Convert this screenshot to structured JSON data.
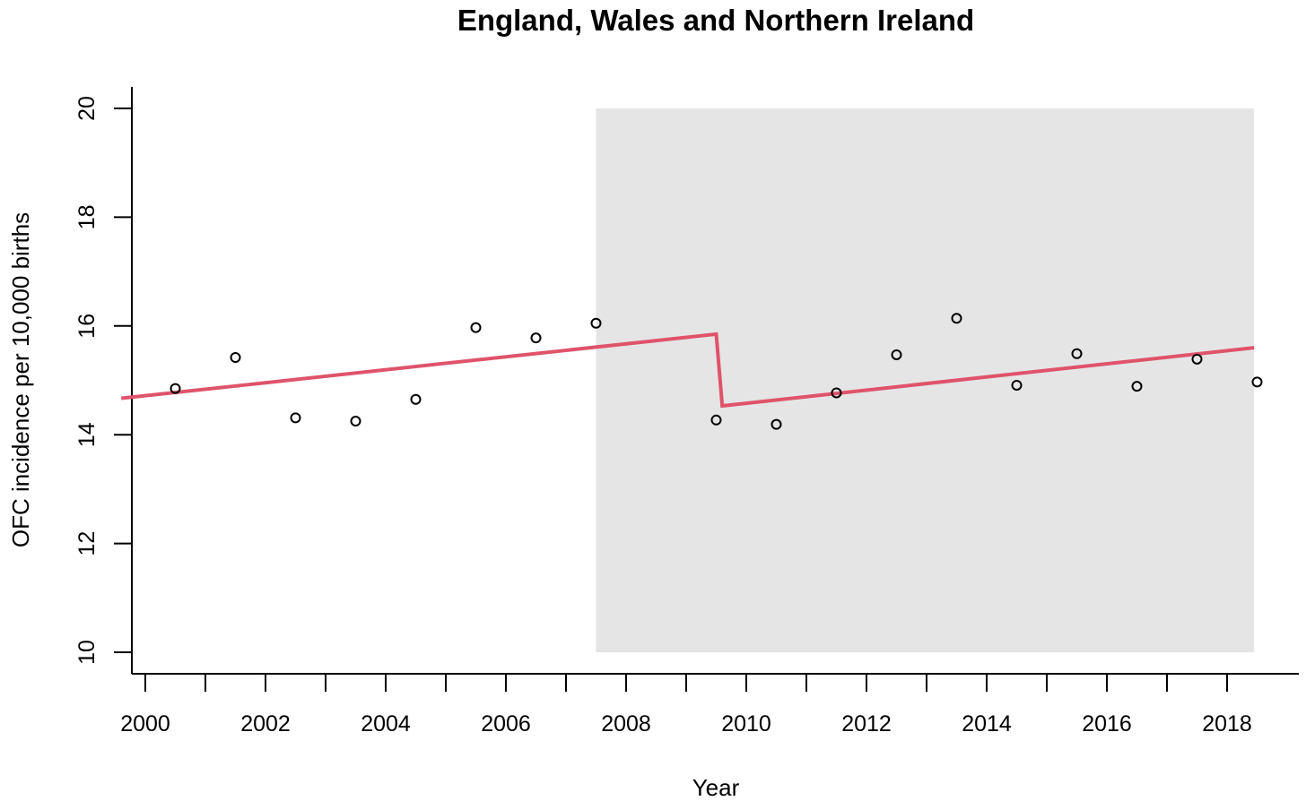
{
  "chart_data": {
    "type": "scatter",
    "title": "England, Wales and Northern Ireland",
    "xlabel": "Year",
    "ylabel": "OFC incidence per 10,000 births",
    "xlim": [
      1999.6,
      2018.8
    ],
    "ylim": [
      10,
      20
    ],
    "x_ticks": [
      2000,
      2001,
      2002,
      2003,
      2004,
      2005,
      2006,
      2007,
      2008,
      2009,
      2010,
      2011,
      2012,
      2013,
      2014,
      2015,
      2016,
      2017,
      2018
    ],
    "x_tick_labels": [
      "2000",
      "",
      "2002",
      "",
      "2004",
      "",
      "2006",
      "",
      "2008",
      "",
      "2010",
      "",
      "2012",
      "",
      "2014",
      "",
      "2016",
      "",
      "2018"
    ],
    "y_ticks": [
      10,
      12,
      14,
      16,
      18,
      20
    ],
    "y_tick_labels": [
      "10",
      "12",
      "14",
      "16",
      "18",
      "20"
    ],
    "grid": false,
    "shaded_region": {
      "x": [
        2007.5,
        2018.45
      ],
      "y": [
        10,
        20
      ],
      "color": "#e5e5e5"
    },
    "points": {
      "color": "#000000",
      "x": [
        2000.5,
        2001.5,
        2002.5,
        2003.5,
        2004.5,
        2005.5,
        2006.5,
        2007.5,
        2009.5,
        2010.5,
        2011.5,
        2012.5,
        2013.5,
        2014.5,
        2015.5,
        2016.5,
        2017.5,
        2018.5
      ],
      "y": [
        14.85,
        15.42,
        14.31,
        14.25,
        14.65,
        15.97,
        15.78,
        16.05,
        14.27,
        14.19,
        14.77,
        15.47,
        16.14,
        14.91,
        15.49,
        14.89,
        15.39,
        14.97
      ]
    },
    "fit_line": {
      "color": "#df536b",
      "segments": [
        {
          "x": [
            1999.6,
            2009.5
          ],
          "y": [
            14.67,
            15.85
          ]
        },
        {
          "x": [
            2009.6,
            2018.45
          ],
          "y": [
            14.53,
            15.6
          ]
        }
      ]
    }
  }
}
